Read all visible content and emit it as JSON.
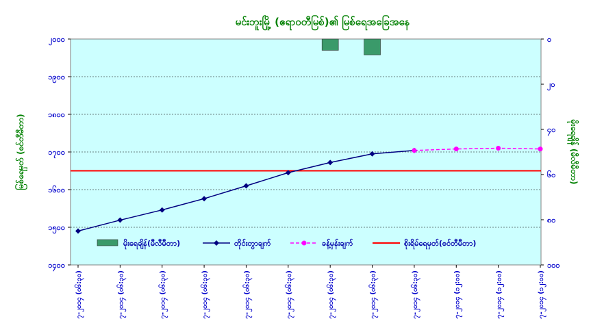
{
  "chart_data": {
    "type": "line",
    "title": "မင်းဘူးမြို့ (ဧရာဝတီမြစ်)၏ မြစ်ရေအခြေအနေ",
    "ylabel_left": "မြစ်ရေမှတ် (စင်တီမီတာ)",
    "ylabel_right": "မိုးရေချိန် (မီလီမီတာ)",
    "y_left": {
      "min": 1400,
      "max": 2000,
      "ticks": [
        1400,
        1500,
        1600,
        1700,
        1800,
        1900,
        2000
      ],
      "tick_labels": [
        "၁၄၀၀",
        "၁၅၀၀",
        "၁၆၀၀",
        "၁၇၀၀",
        "၁၈၀၀",
        "၁၉၀၀",
        "၂၀၀၀"
      ]
    },
    "y_right": {
      "min": 0,
      "max": 100,
      "inverted": true,
      "ticks": [
        0,
        20,
        40,
        60,
        80,
        100
      ],
      "tick_labels": [
        "၀",
        "၂၀",
        "၄၀",
        "၆၀",
        "၈၀",
        "၁၀၀"
      ]
    },
    "categories": [
      "၈-၇-၂၀၁၄ (၀၆:၃၀)",
      "၉-၇-၂၀၁၄ (၀၆:၃၀)",
      "၁၀-၇-၂၀၁၄ (၀၆:၃၀)",
      "၁၁-၇-၂၀၁၄ (၀၆:၃၀)",
      "၁၂-၇-၂၀၁၄ (၀၆:၃၀)",
      "၁၃-၇-၂၀၁၄ (၀၆:၃၀)",
      "၁၄-၇-၂၀၁၄ (၀၆:၃၀)",
      "၁၅-၇-၂၀၁၄ (၀၆:၃၀)",
      "၁၆-၇-၂၀၁၄ (၀၆:၃၀)",
      "၁၇-၇-၂၀၁၄ (၁၂:၀၀)",
      "၁၈-၇-၂၀၁၄ (၁၂:၀၀)",
      "၁၉-၇-၂၀၁၄ (၁၂:၀၀)"
    ],
    "series": [
      {
        "name": "မိုးရေချိန်(မီလီမီတာ)",
        "kind": "bar",
        "axis": "right",
        "color": "#3a9a6a",
        "values": [
          null,
          null,
          null,
          null,
          null,
          null,
          5,
          7,
          null,
          null,
          null,
          null
        ]
      },
      {
        "name": "တိုင်းတွာချက်",
        "kind": "line",
        "axis": "left",
        "color": "#000080",
        "values": [
          1490,
          1519,
          1546,
          1576,
          1610,
          1645,
          1672,
          1695,
          1704,
          null,
          null,
          null
        ]
      },
      {
        "name": "ခန့်မှန်းချက်",
        "kind": "line",
        "axis": "left",
        "color": "#ff00ff",
        "dashed": true,
        "values": [
          null,
          null,
          null,
          null,
          null,
          null,
          null,
          null,
          1704,
          1708,
          1710,
          1708
        ]
      },
      {
        "name": "စိုးရိမ်ရေမှတ်(စင်တီမီတာ)",
        "kind": "hline",
        "axis": "left",
        "color": "#ff0000",
        "value": 1650
      }
    ],
    "grid": true,
    "legend_position": "bottom"
  }
}
